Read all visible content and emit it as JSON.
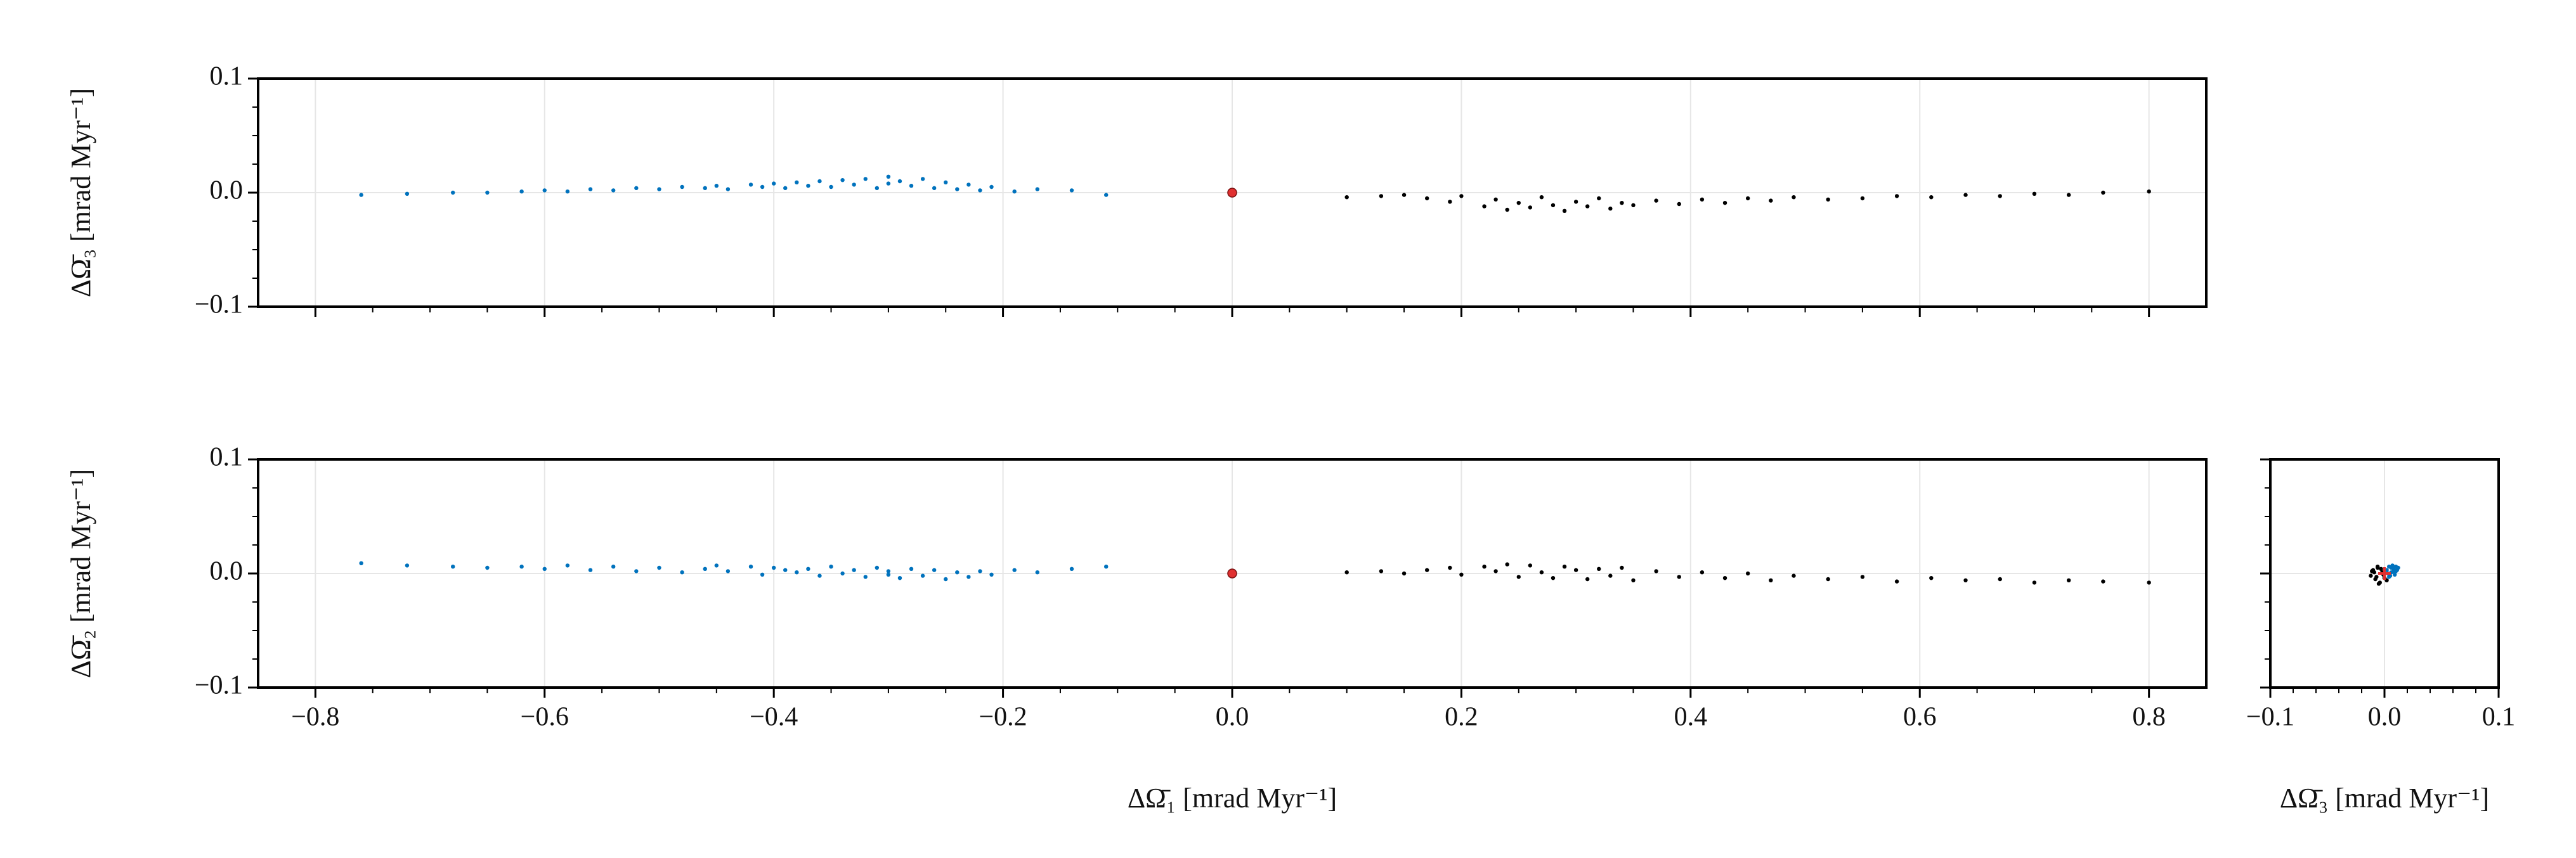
{
  "chart_data": [
    {
      "type": "scatter",
      "ylabel": "ΔΩ̄₃ [mrad Myr⁻¹]",
      "grid": true,
      "xlim": [
        -0.85,
        0.85
      ],
      "ylim": [
        -0.1,
        0.1
      ],
      "xticks": [
        -0.8,
        -0.6,
        -0.4,
        -0.2,
        0,
        0.2,
        0.4,
        0.6,
        0.8
      ],
      "xticklabels": false,
      "yticks": [
        {
          "value": -0.1,
          "label": "−0.1"
        },
        {
          "value": 0,
          "label": "0.0"
        },
        0.1
      ],
      "xminorticks": [
        -0.75,
        -0.7,
        -0.65,
        -0.55,
        -0.5,
        -0.45,
        -0.35,
        -0.3,
        -0.25,
        -0.15,
        -0.1,
        -0.05,
        0.05,
        0.1,
        0.15,
        0.25,
        0.3,
        0.35,
        0.45,
        0.5,
        0.55,
        0.65,
        0.7,
        0.75
      ],
      "yminorticks": [
        -0.075,
        -0.05,
        -0.025,
        0.025,
        0.05,
        0.075
      ],
      "series": [
        {
          "color": "#0072bd",
          "marker": "dot",
          "x": [
            -0.76,
            -0.72,
            -0.68,
            -0.65,
            -0.62,
            -0.6,
            -0.58,
            -0.56,
            -0.54,
            -0.52,
            -0.5,
            -0.48,
            -0.46,
            -0.45,
            -0.44,
            -0.42,
            -0.41,
            -0.4,
            -0.39,
            -0.38,
            -0.37,
            -0.36,
            -0.35,
            -0.34,
            -0.33,
            -0.32,
            -0.31,
            -0.3,
            -0.3,
            -0.29,
            -0.28,
            -0.27,
            -0.26,
            -0.25,
            -0.24,
            -0.23,
            -0.22,
            -0.21,
            -0.19,
            -0.17,
            -0.14,
            -0.11
          ],
          "y": [
            -0.002,
            -0.001,
            0,
            0,
            0.001,
            0.002,
            0.001,
            0.003,
            0.002,
            0.004,
            0.003,
            0.005,
            0.004,
            0.006,
            0.003,
            0.007,
            0.005,
            0.008,
            0.004,
            0.009,
            0.006,
            0.01,
            0.005,
            0.011,
            0.007,
            0.012,
            0.004,
            0.014,
            0.008,
            0.01,
            0.006,
            0.012,
            0.004,
            0.009,
            0.003,
            0.007,
            0.002,
            0.005,
            0.001,
            0.003,
            0.002,
            -0.002
          ]
        },
        {
          "color": "#000000",
          "marker": "dot",
          "x": [
            0.1,
            0.13,
            0.15,
            0.17,
            0.19,
            0.2,
            0.22,
            0.23,
            0.24,
            0.25,
            0.26,
            0.27,
            0.28,
            0.29,
            0.3,
            0.31,
            0.32,
            0.33,
            0.34,
            0.35,
            0.37,
            0.39,
            0.41,
            0.43,
            0.45,
            0.47,
            0.49,
            0.52,
            0.55,
            0.58,
            0.61,
            0.64,
            0.67,
            0.7,
            0.73,
            0.76,
            0.8
          ],
          "y": [
            -0.004,
            -0.003,
            -0.002,
            -0.005,
            -0.008,
            -0.003,
            -0.012,
            -0.006,
            -0.015,
            -0.009,
            -0.013,
            -0.004,
            -0.011,
            -0.016,
            -0.008,
            -0.012,
            -0.005,
            -0.014,
            -0.009,
            -0.011,
            -0.007,
            -0.01,
            -0.006,
            -0.009,
            -0.005,
            -0.007,
            -0.004,
            -0.006,
            -0.005,
            -0.003,
            -0.004,
            -0.002,
            -0.003,
            -0.001,
            -0.002,
            0,
            0.001
          ]
        },
        {
          "color": "#e03030",
          "marker": "circle",
          "x": [
            0
          ],
          "y": [
            0
          ]
        }
      ]
    },
    {
      "type": "scatter",
      "xlabel": "ΔΩ̄₁ [mrad Myr⁻¹]",
      "ylabel": "ΔΩ̄₂ [mrad Myr⁻¹]",
      "grid": true,
      "xlim": [
        -0.85,
        0.85
      ],
      "ylim": [
        -0.1,
        0.1
      ],
      "xticks": [
        {
          "value": -0.8,
          "label": "−0.8"
        },
        {
          "value": -0.6,
          "label": "−0.6"
        },
        {
          "value": -0.4,
          "label": "−0.4"
        },
        {
          "value": -0.2,
          "label": "−0.2"
        },
        {
          "value": 0,
          "label": "0.0"
        },
        0.2,
        0.4,
        0.6,
        0.8
      ],
      "xticklabels": true,
      "yticks": [
        {
          "value": -0.1,
          "label": "−0.1"
        },
        {
          "value": 0,
          "label": "0.0"
        },
        0.1
      ],
      "xminorticks": [
        -0.75,
        -0.7,
        -0.65,
        -0.55,
        -0.5,
        -0.45,
        -0.35,
        -0.3,
        -0.25,
        -0.15,
        -0.1,
        -0.05,
        0.05,
        0.1,
        0.15,
        0.25,
        0.3,
        0.35,
        0.45,
        0.5,
        0.55,
        0.65,
        0.7,
        0.75
      ],
      "yminorticks": [
        -0.075,
        -0.05,
        -0.025,
        0.025,
        0.05,
        0.075
      ],
      "series": [
        {
          "color": "#0072bd",
          "marker": "dot",
          "x": [
            -0.76,
            -0.72,
            -0.68,
            -0.65,
            -0.62,
            -0.6,
            -0.58,
            -0.56,
            -0.54,
            -0.52,
            -0.5,
            -0.48,
            -0.46,
            -0.45,
            -0.44,
            -0.42,
            -0.41,
            -0.4,
            -0.39,
            -0.38,
            -0.37,
            -0.36,
            -0.35,
            -0.34,
            -0.33,
            -0.32,
            -0.31,
            -0.3,
            -0.3,
            -0.29,
            -0.28,
            -0.27,
            -0.26,
            -0.25,
            -0.24,
            -0.23,
            -0.22,
            -0.21,
            -0.19,
            -0.17,
            -0.14,
            -0.11
          ],
          "y": [
            0.009,
            0.007,
            0.006,
            0.005,
            0.006,
            0.004,
            0.007,
            0.003,
            0.006,
            0.002,
            0.005,
            0.001,
            0.004,
            0.007,
            0.002,
            0.006,
            -0.001,
            0.005,
            0.003,
            0.001,
            0.004,
            -0.002,
            0.006,
            0,
            0.003,
            -0.003,
            0.005,
            -0.001,
            0.002,
            -0.004,
            0.004,
            -0.002,
            0.003,
            -0.005,
            0.001,
            -0.003,
            0.002,
            -0.001,
            0.003,
            0.001,
            0.004,
            0.006
          ]
        },
        {
          "color": "#000000",
          "marker": "dot",
          "x": [
            0.1,
            0.13,
            0.15,
            0.17,
            0.19,
            0.2,
            0.22,
            0.23,
            0.24,
            0.25,
            0.26,
            0.27,
            0.28,
            0.29,
            0.3,
            0.31,
            0.32,
            0.33,
            0.34,
            0.35,
            0.37,
            0.39,
            0.41,
            0.43,
            0.45,
            0.47,
            0.49,
            0.52,
            0.55,
            0.58,
            0.61,
            0.64,
            0.67,
            0.7,
            0.73,
            0.76,
            0.8
          ],
          "y": [
            0.001,
            0.002,
            0,
            0.003,
            0.005,
            -0.001,
            0.006,
            0.002,
            0.008,
            -0.003,
            0.007,
            0.001,
            -0.004,
            0.006,
            0.003,
            -0.005,
            0.004,
            -0.002,
            0.005,
            -0.006,
            0.002,
            -0.003,
            0.001,
            -0.004,
            0,
            -0.006,
            -0.002,
            -0.005,
            -0.003,
            -0.007,
            -0.004,
            -0.006,
            -0.005,
            -0.008,
            -0.006,
            -0.007,
            -0.008
          ]
        },
        {
          "color": "#e03030",
          "marker": "circle",
          "x": [
            0
          ],
          "y": [
            0
          ]
        }
      ]
    },
    {
      "type": "scatter",
      "xlabel": "ΔΩ̄₃ [mrad Myr⁻¹]",
      "grid": true,
      "xlim": [
        -0.1,
        0.1
      ],
      "ylim": [
        -0.1,
        0.1
      ],
      "xticks": [
        {
          "value": -0.1,
          "label": "−0.1"
        },
        {
          "value": 0,
          "label": "0.0"
        },
        0.1
      ],
      "xticklabels": true,
      "yticks": [
        -0.1,
        0,
        0.1
      ],
      "yticklabels": false,
      "xminorticks": [
        -0.08,
        -0.06,
        -0.04,
        -0.02,
        0.02,
        0.04,
        0.06,
        0.08
      ],
      "yminorticks": [
        -0.075,
        -0.05,
        -0.025,
        0.025,
        0.05,
        0.075
      ],
      "series": [
        {
          "color": "#0072bd",
          "marker": "dot",
          "x": [
            0.002,
            0.004,
            0.006,
            0.008,
            0.01,
            0.012,
            0.005,
            0.007,
            0.009,
            0.003,
            0.011,
            0.006,
            0.008,
            0.004,
            0.01
          ],
          "y": [
            0.003,
            0.006,
            0.001,
            0.004,
            0.002,
            0.005,
            -0.002,
            0.007,
            -0.001,
            0,
            0.003,
            0.005,
            0.002,
            -0.003,
            0.006
          ]
        },
        {
          "color": "#000000",
          "marker": "dot",
          "x": [
            -0.012,
            -0.01,
            -0.008,
            -0.006,
            -0.004,
            -0.002,
            0,
            0.002,
            -0.009,
            -0.005,
            -0.003,
            -0.007,
            -0.001,
            -0.011,
            -0.006
          ],
          "y": [
            -0.002,
            0.003,
            -0.005,
            0.006,
            -0.008,
            0.001,
            -0.004,
            -0.006,
            0.001,
            -0.009,
            0.004,
            -0.003,
            -0.001,
            0.002,
            0.005
          ]
        },
        {
          "color": "#e03030",
          "marker": "plus",
          "x": [
            0
          ],
          "y": [
            0
          ]
        }
      ]
    }
  ]
}
